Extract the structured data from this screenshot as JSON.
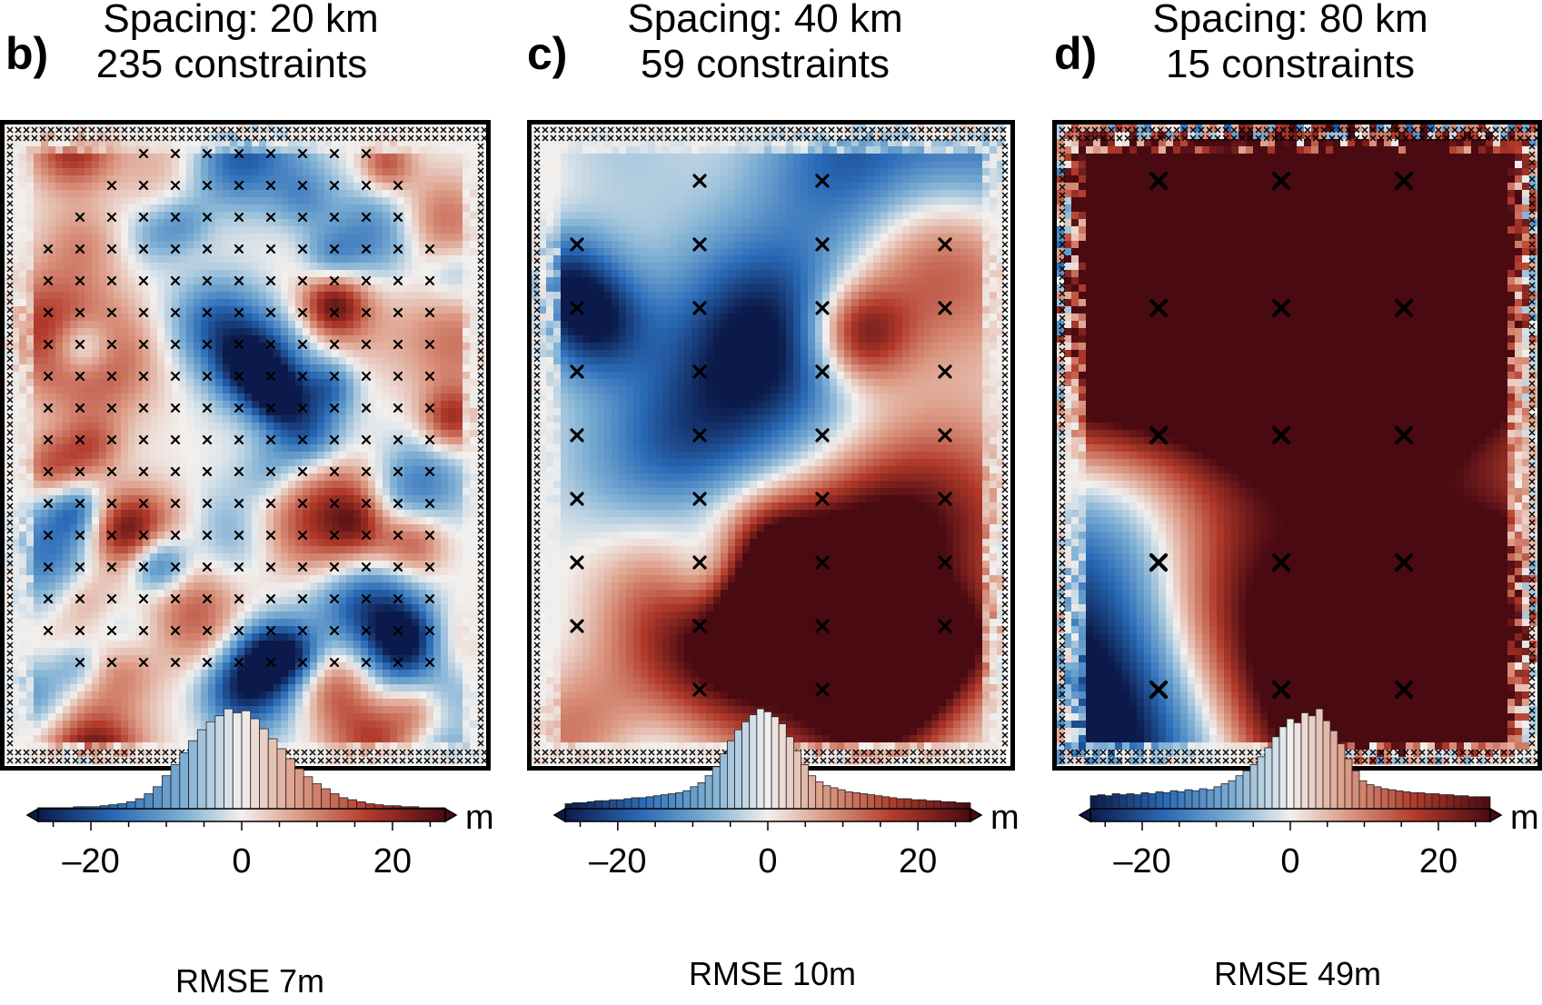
{
  "colors": {
    "low": "#0b1a4a",
    "mid_low": "#2a6bb8",
    "mid_low2": "#7fb0d4",
    "zero": "#f2f0ee",
    "mid_high2": "#dc9b86",
    "mid_high": "#b23a2a",
    "high": "#4a0a12",
    "marker": "#000000"
  },
  "chart_data": [
    {
      "type": "heatmap",
      "panel_label": "b)",
      "title_line1": "Spacing: 20 km",
      "title_line2": "235 constraints",
      "grid_points": 13,
      "rmse_label": "RMSE 7m",
      "colorbar": {
        "ticks": [
          -20,
          0,
          20
        ],
        "tick_labels": [
          "–20",
          "0",
          "20"
        ],
        "range": [
          -27,
          27
        ],
        "unit": "m"
      },
      "histogram": [
        1,
        1,
        1,
        1,
        2,
        2,
        2,
        3,
        4,
        5,
        7,
        10,
        15,
        22,
        33,
        44,
        56,
        68,
        79,
        87,
        93,
        100,
        96,
        98,
        90,
        80,
        70,
        60,
        50,
        40,
        32,
        25,
        20,
        15,
        11,
        9,
        7,
        5,
        4,
        3,
        3,
        2,
        2,
        1,
        1,
        1
      ]
    },
    {
      "type": "heatmap",
      "panel_label": "c)",
      "title_line1": "Spacing: 40 km",
      "title_line2": "59 constraints",
      "grid_points": 7,
      "rmse_label": "RMSE 10m",
      "colorbar": {
        "ticks": [
          -20,
          0,
          20
        ],
        "tick_labels": [
          "–20",
          "0",
          "20"
        ],
        "range": [
          -27,
          27
        ],
        "unit": "m"
      },
      "histogram": [
        5,
        6,
        6,
        7,
        8,
        8,
        9,
        9,
        10,
        11,
        11,
        12,
        13,
        14,
        15,
        16,
        18,
        22,
        26,
        33,
        42,
        55,
        68,
        79,
        87,
        94,
        100,
        97,
        92,
        85,
        72,
        58,
        44,
        33,
        27,
        23,
        21,
        19,
        17,
        16,
        15,
        14,
        13,
        12,
        11,
        10,
        10,
        9,
        9,
        8,
        8,
        7,
        7,
        6,
        6
      ]
    },
    {
      "type": "heatmap",
      "panel_label": "d)",
      "title_line1": "Spacing: 80 km",
      "title_line2": "15 constraints",
      "grid_points": 4,
      "rmse_label": "RMSE 49m",
      "colorbar": {
        "ticks": [
          -20,
          0,
          20
        ],
        "tick_labels": [
          "–20",
          "0",
          "20"
        ],
        "range": [
          -27,
          27
        ],
        "unit": "m"
      },
      "histogram": [
        13,
        14,
        13,
        15,
        14,
        15,
        14,
        16,
        15,
        17,
        16,
        18,
        17,
        19,
        18,
        20,
        19,
        22,
        25,
        28,
        33,
        38,
        44,
        52,
        61,
        72,
        82,
        90,
        86,
        96,
        93,
        100,
        88,
        78,
        65,
        50,
        38,
        28,
        24,
        22,
        20,
        19,
        18,
        17,
        16,
        16,
        15,
        15,
        14,
        14,
        13,
        13,
        12,
        12,
        12
      ]
    }
  ]
}
